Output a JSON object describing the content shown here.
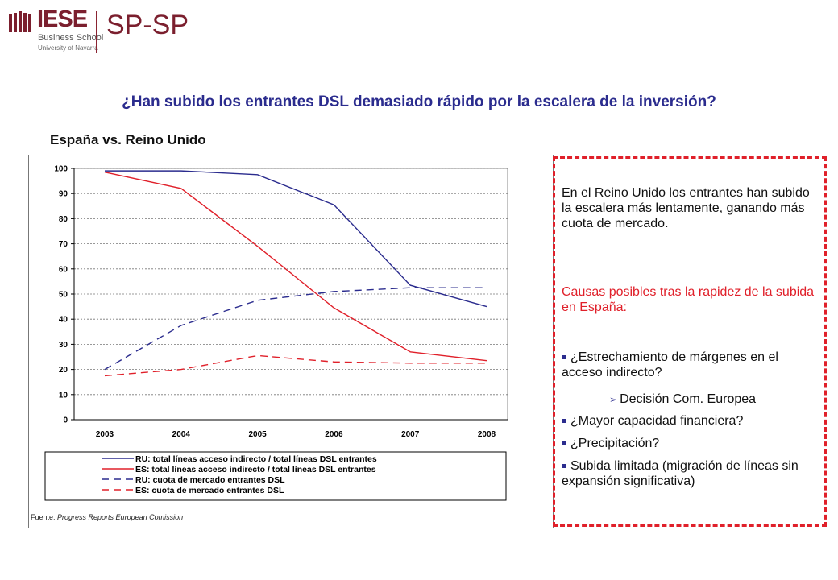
{
  "header": {
    "logo_main": "IESE",
    "logo_sub1": "Business School",
    "logo_sub2": "University of Navarra",
    "logo_right": "SP-SP"
  },
  "headline": "¿Han subido los entrantes DSL demasiado rápido por la escalera de la inversión?",
  "subtitle": "España vs. Reino Unido",
  "source": {
    "label": "Fuente: ",
    "text": "Progress Reports European Comission"
  },
  "side_panel": {
    "intro": "En el Reino Unido los entrantes han subido la escalera más lentamente, ganando más cuota de mercado.",
    "causes_heading": "Causas posibles tras la rapidez de la subida en España:",
    "bullets": [
      "¿Estrechamiento de márgenes en el acceso indirecto?",
      "Decisión Com. Europea",
      "¿Mayor capacidad financiera?",
      "¿Precipitación?",
      "Subida limitada (migración de líneas sin expansión significativa)"
    ]
  },
  "colors": {
    "uk": "#2b2c8e",
    "es": "#e0202a",
    "accent": "#e0202a"
  },
  "chart_data": {
    "type": "line",
    "title": "",
    "xlabel": "",
    "ylabel": "",
    "categories": [
      "2003",
      "2004",
      "2005",
      "2006",
      "2007",
      "2008"
    ],
    "ylim": [
      0,
      100
    ],
    "yticks": [
      0,
      10,
      20,
      30,
      40,
      50,
      60,
      70,
      80,
      90,
      100
    ],
    "grid": true,
    "legend_position": "bottom",
    "series": [
      {
        "name": "RU: total líneas acceso indirecto / total líneas DSL entrantes",
        "color": "#2b2c8e",
        "dash": "solid",
        "values": [
          99,
          99,
          97.5,
          85.5,
          53.5,
          45
        ]
      },
      {
        "name": "ES: total líneas acceso indirecto / total líneas DSL entrantes",
        "color": "#e0202a",
        "dash": "solid",
        "values": [
          98.5,
          92,
          69,
          44.5,
          27,
          23.5
        ]
      },
      {
        "name": "RU: cuota de mercado entrantes DSL",
        "color": "#2b2c8e",
        "dash": "dashed",
        "values": [
          20,
          37.5,
          47.5,
          51,
          52.5,
          52.5
        ]
      },
      {
        "name": "ES: cuota de mercado entrantes DSL",
        "color": "#e0202a",
        "dash": "dashed",
        "values": [
          17.5,
          20,
          25.5,
          23,
          22.5,
          22.5
        ]
      }
    ]
  }
}
